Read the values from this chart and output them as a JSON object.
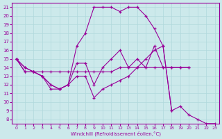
{
  "xlabel": "Windchill (Refroidissement éolien,°C)",
  "background_color": "#cce9eb",
  "line_color": "#990099",
  "grid_color": "#b0d8dc",
  "xlim": [
    -0.5,
    23.5
  ],
  "ylim": [
    7.5,
    21.5
  ],
  "xticks": [
    0,
    1,
    2,
    3,
    4,
    5,
    6,
    7,
    8,
    9,
    10,
    11,
    12,
    13,
    14,
    15,
    16,
    17,
    18,
    19,
    20,
    21,
    22,
    23
  ],
  "yticks": [
    8,
    9,
    10,
    11,
    12,
    13,
    14,
    15,
    16,
    17,
    18,
    19,
    20,
    21
  ],
  "series": [
    {
      "x": [
        0,
        1,
        2,
        3,
        4,
        5,
        6,
        7,
        8,
        9,
        10,
        11,
        12,
        13,
        14,
        15,
        16,
        17,
        18
      ],
      "y": [
        15,
        14,
        13.5,
        13,
        12,
        11.5,
        12,
        16.5,
        18,
        21,
        21,
        21,
        20.5,
        21,
        21,
        20,
        18.5,
        16.5,
        9
      ]
    },
    {
      "x": [
        0,
        1,
        2,
        3,
        4,
        5,
        6,
        7,
        8,
        9,
        10,
        11,
        12,
        13,
        14,
        15,
        16,
        17,
        18,
        19,
        20,
        21,
        22,
        23
      ],
      "y": [
        15,
        13.5,
        13.5,
        13,
        11.5,
        11.5,
        12,
        13,
        13,
        10.5,
        11.5,
        12,
        12.5,
        13,
        14,
        15,
        16,
        16.5,
        9,
        9.5,
        8.5,
        8,
        7.5,
        7.5
      ]
    },
    {
      "x": [
        0,
        1,
        2,
        3,
        4,
        5,
        6,
        7,
        8,
        9,
        10,
        11,
        12,
        13,
        14,
        15,
        16,
        17,
        18,
        19,
        20
      ],
      "y": [
        15,
        13.5,
        13.5,
        13.5,
        13.5,
        13.5,
        13.5,
        13.5,
        13.5,
        13.5,
        13.5,
        13.5,
        14,
        14,
        14,
        14,
        14,
        14,
        14,
        14,
        14
      ]
    },
    {
      "x": [
        0,
        1,
        2,
        3,
        4,
        5,
        6,
        7,
        8,
        9,
        10,
        11,
        12,
        13,
        14,
        15,
        16,
        17,
        18,
        19,
        20
      ],
      "y": [
        15,
        14,
        13.5,
        13,
        12,
        11.5,
        12,
        14.5,
        14.5,
        12,
        14,
        15,
        16,
        14,
        15,
        14,
        16.5,
        14,
        14,
        14,
        14
      ]
    }
  ]
}
